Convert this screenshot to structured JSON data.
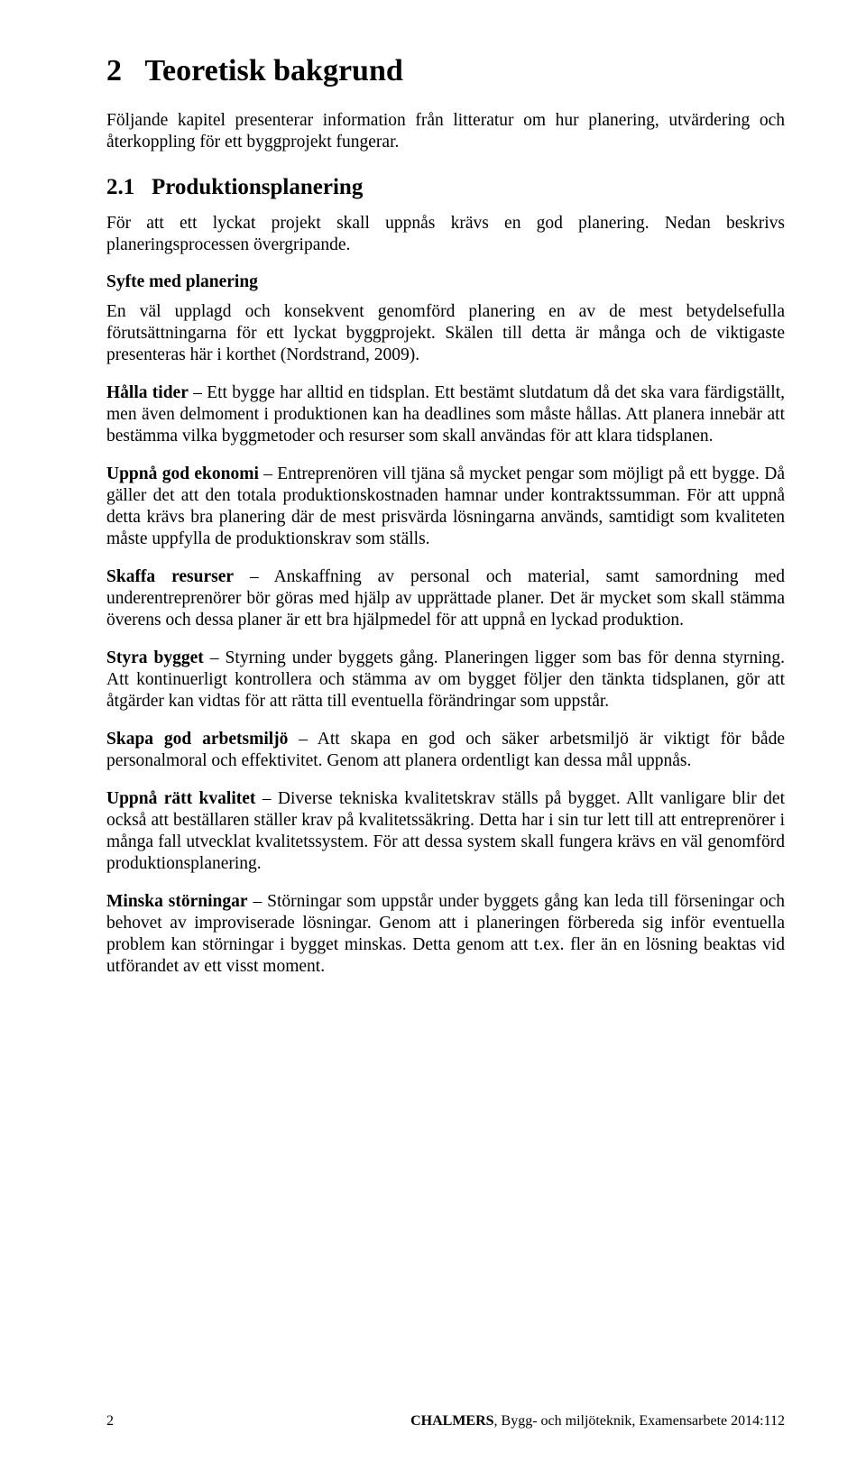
{
  "chapter": {
    "number": "2",
    "title": "Teoretisk bakgrund",
    "intro": "Följande kapitel presenterar information från litteratur om hur planering, utvärdering och återkoppling för ett byggprojekt fungerar."
  },
  "section": {
    "number": "2.1",
    "title": "Produktionsplanering",
    "intro": "För att ett lyckat projekt skall uppnås krävs en god planering. Nedan beskrivs planeringsprocessen övergripande."
  },
  "subsection": {
    "heading": "Syfte med planering",
    "intro": "En väl upplagd och konsekvent genomförd planering en av de mest betydelsefulla förutsättningarna för ett lyckat byggprojekt. Skälen till detta är många och de viktigaste presenteras här i korthet (Nordstrand, 2009)."
  },
  "items": [
    {
      "lead": "Hålla tider",
      "text": " – Ett bygge har alltid en tidsplan. Ett bestämt slutdatum då det ska vara färdigställt, men även delmoment i produktionen kan ha deadlines som måste hållas. Att planera innebär att bestämma vilka byggmetoder och resurser som skall användas för att klara tidsplanen."
    },
    {
      "lead": "Uppnå god ekonomi",
      "text": " – Entreprenören vill tjäna så mycket pengar som möjligt på ett bygge. Då gäller det att den totala produktionskostnaden hamnar under kontraktssumman. För att uppnå detta krävs bra planering där de mest prisvärda lösningarna används, samtidigt som kvaliteten måste uppfylla de produktionskrav som ställs."
    },
    {
      "lead": "Skaffa resurser",
      "text": " – Anskaffning av personal och material, samt samordning med underentreprenörer bör göras med hjälp av upprättade planer. Det är mycket som skall stämma överens och dessa planer är ett bra hjälpmedel för att uppnå en lyckad produktion."
    },
    {
      "lead": "Styra bygget",
      "text": " – Styrning under byggets gång. Planeringen ligger som bas för denna styrning. Att kontinuerligt kontrollera och stämma av om bygget följer den tänkta tidsplanen, gör att åtgärder kan vidtas för att rätta till eventuella förändringar som uppstår."
    },
    {
      "lead": "Skapa god arbetsmiljö",
      "text": " – Att skapa en god och säker arbetsmiljö är viktigt för både personalmoral och effektivitet. Genom att planera ordentligt kan dessa mål uppnås."
    },
    {
      "lead": "Uppnå rätt kvalitet",
      "text": " – Diverse tekniska kvalitetskrav ställs på bygget. Allt vanligare blir det också att beställaren ställer krav på kvalitetssäkring. Detta har i sin tur lett till att entreprenörer i många fall utvecklat kvalitetssystem. För att dessa system skall fungera krävs en väl genomförd produktionsplanering."
    },
    {
      "lead": "Minska störningar",
      "text": " – Störningar som uppstår under byggets gång kan leda till förseningar och behovet av improviserade lösningar. Genom att i planeringen förbereda sig inför eventuella problem kan störningar i bygget minskas. Detta genom att t.ex. fler än en lösning beaktas vid utförandet av ett visst moment."
    }
  ],
  "footer": {
    "page_number": "2",
    "publisher": "CHALMERS",
    "dept": ", Bygg- och miljöteknik, Examensarbete ",
    "code": "2014:112"
  }
}
